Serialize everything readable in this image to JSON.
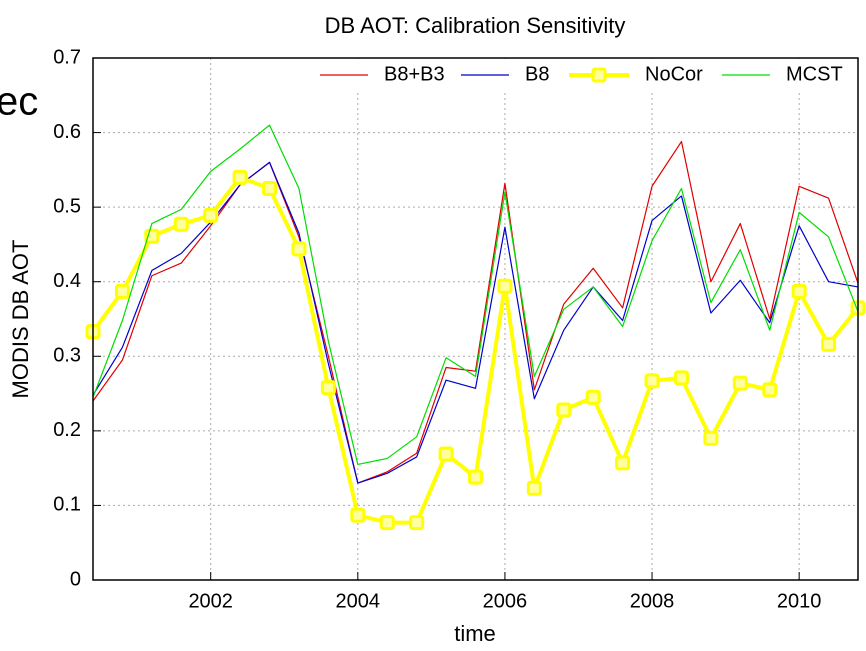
{
  "chart_data": {
    "type": "line",
    "title": "DB AOT: Calibration Sensitivity",
    "x_label": "time",
    "y_label": "MODIS DB AOT",
    "annotation": "ec",
    "x": [
      2000.4,
      2000.8,
      2001.2,
      2001.6,
      2002.0,
      2002.4,
      2002.8,
      2003.2,
      2003.6,
      2004.0,
      2004.4,
      2004.8,
      2005.2,
      2005.6,
      2006.0,
      2006.4,
      2006.8,
      2007.2,
      2007.6,
      2008.0,
      2008.4,
      2008.8,
      2009.2,
      2009.6,
      2010.0,
      2010.4,
      2010.8
    ],
    "series": [
      {
        "name": "B8+B3",
        "color": "#e00000",
        "values": [
          0.24,
          0.295,
          0.408,
          0.425,
          0.475,
          0.53,
          0.56,
          0.46,
          0.3,
          0.13,
          0.145,
          0.17,
          0.285,
          0.28,
          0.532,
          0.255,
          0.37,
          0.418,
          0.365,
          0.528,
          0.588,
          0.4,
          0.478,
          0.35,
          0.528,
          0.512,
          0.398
        ]
      },
      {
        "name": "B8",
        "color": "#0000cc",
        "values": [
          0.248,
          0.312,
          0.415,
          0.438,
          0.48,
          0.53,
          0.56,
          0.465,
          0.29,
          0.13,
          0.143,
          0.165,
          0.268,
          0.257,
          0.473,
          0.243,
          0.335,
          0.393,
          0.348,
          0.482,
          0.515,
          0.358,
          0.402,
          0.345,
          0.475,
          0.4,
          0.393
        ]
      },
      {
        "name": "NoCor",
        "color": "#ffff00",
        "marker": "square",
        "values": [
          0.333,
          0.387,
          0.461,
          0.477,
          0.489,
          0.54,
          0.525,
          0.444,
          0.258,
          0.087,
          0.077,
          0.077,
          0.169,
          0.138,
          0.394,
          0.123,
          0.228,
          0.245,
          0.157,
          0.267,
          0.271,
          0.19,
          0.264,
          0.255,
          0.387,
          0.316,
          0.365
        ]
      },
      {
        "name": "MCST",
        "color": "#00dd00",
        "values": [
          0.245,
          0.348,
          0.478,
          0.497,
          0.548,
          0.578,
          0.61,
          0.525,
          0.32,
          0.155,
          0.163,
          0.192,
          0.298,
          0.273,
          0.52,
          0.273,
          0.363,
          0.393,
          0.34,
          0.455,
          0.525,
          0.372,
          0.443,
          0.335,
          0.493,
          0.46,
          0.36
        ]
      }
    ],
    "xlim": [
      2000.4,
      2010.8
    ],
    "xticks": [
      2002,
      2004,
      2006,
      2008,
      2010
    ],
    "ylim": [
      0,
      0.7
    ],
    "yticks": [
      0,
      0.1,
      0.2,
      0.3,
      0.4,
      0.5,
      0.6,
      0.7
    ],
    "grid": true,
    "legend": "top-right"
  }
}
